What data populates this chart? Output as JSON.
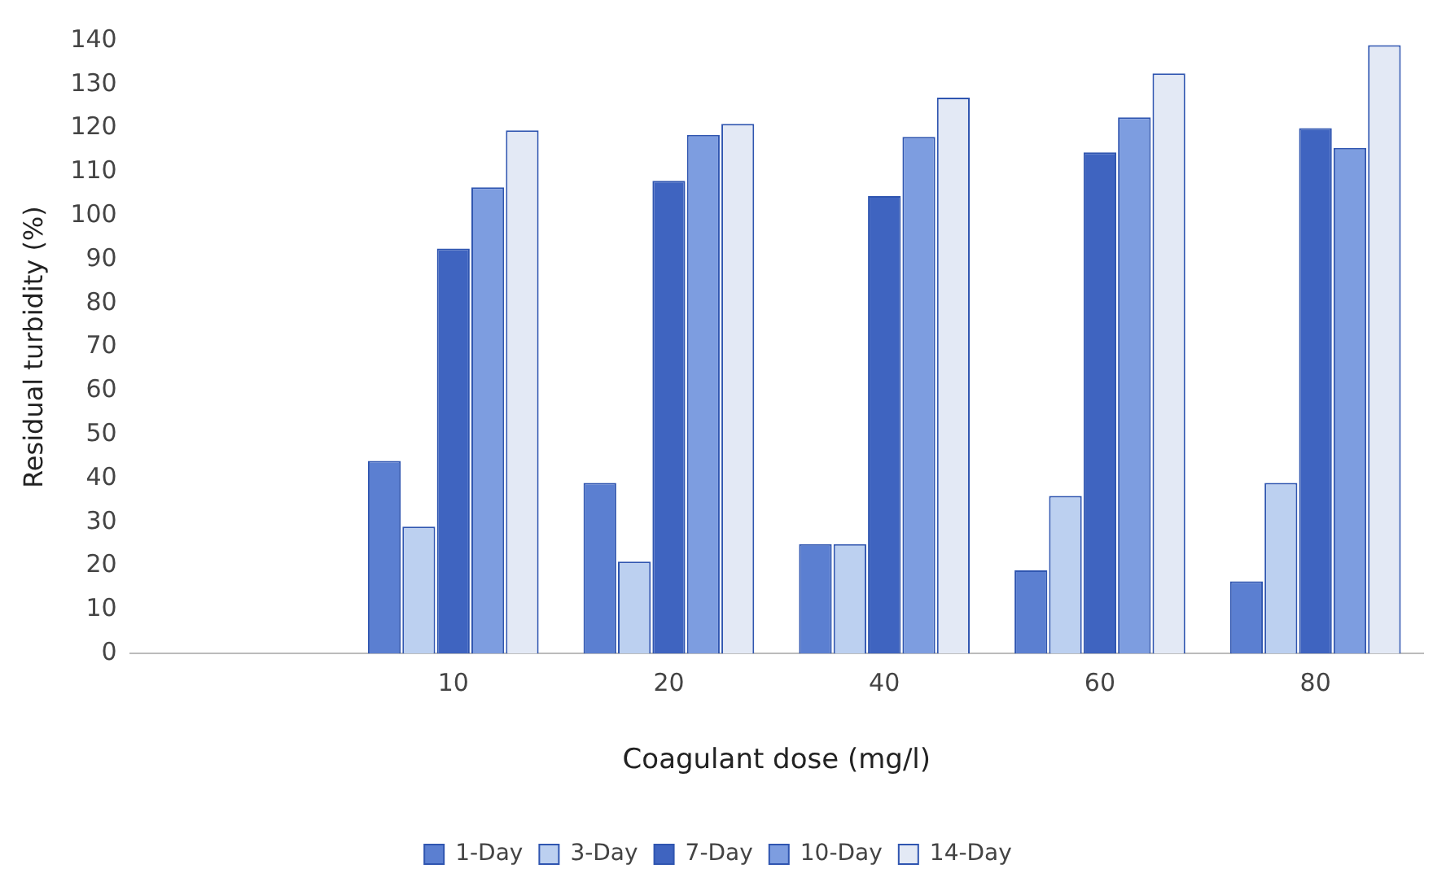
{
  "chart_data": {
    "type": "bar",
    "xlabel": "Coagulant dose (mg/l)",
    "ylabel": "Residual turbidity (%)",
    "categories": [
      null,
      "10",
      "20",
      "40",
      "60",
      "80"
    ],
    "series": [
      {
        "name": "1-Day",
        "color": "#5b7fd1",
        "values": [
          null,
          44,
          39,
          25,
          19,
          16.5
        ]
      },
      {
        "name": "3-Day",
        "color": "#bcd0f0",
        "values": [
          null,
          29,
          21,
          25,
          36,
          39
        ]
      },
      {
        "name": "7-Day",
        "color": "#3f64c0",
        "values": [
          null,
          92.5,
          108,
          104.5,
          114.5,
          120
        ]
      },
      {
        "name": "10-Day",
        "color": "#7d9de0",
        "values": [
          null,
          106.5,
          118.5,
          118,
          122.5,
          115.5
        ]
      },
      {
        "name": "14-Day",
        "color": "#e3e9f5",
        "values": [
          null,
          119.5,
          121,
          127,
          132.5,
          139
        ]
      }
    ],
    "ylim": [
      0,
      140
    ],
    "yticks": [
      0,
      10,
      20,
      30,
      40,
      50,
      60,
      70,
      80,
      90,
      100,
      110,
      120,
      130,
      140
    ],
    "grid": false,
    "legend": "bottom"
  }
}
